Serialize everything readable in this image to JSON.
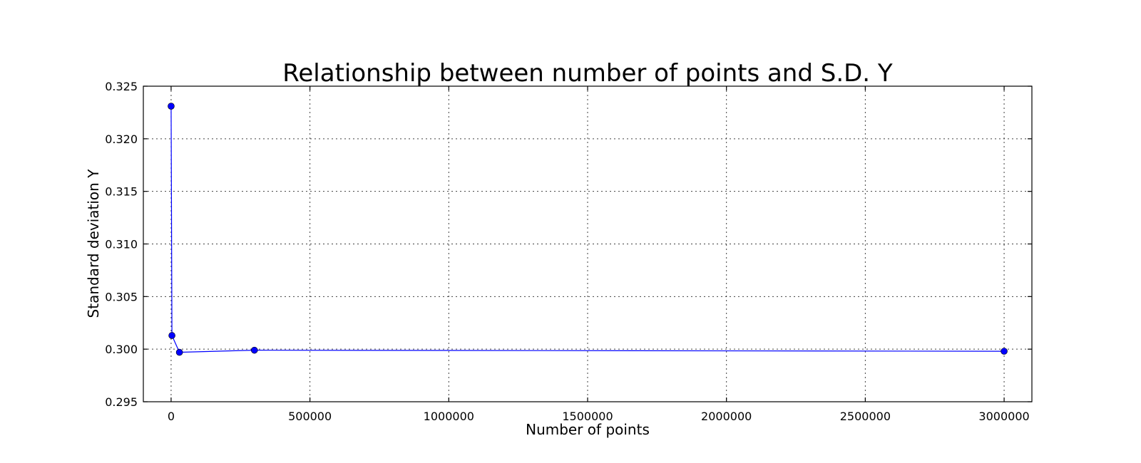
{
  "chart_data": {
    "type": "line",
    "title": "Relationship between number of points and S.D. Y",
    "xlabel": "Number of points",
    "ylabel": "Standard deviation Y",
    "xlim": [
      -100000,
      3100000
    ],
    "ylim": [
      0.295,
      0.325
    ],
    "xticks": [
      0,
      500000,
      1000000,
      1500000,
      2000000,
      2500000,
      3000000
    ],
    "xtick_labels": [
      "0",
      "500000",
      "1000000",
      "1500000",
      "2000000",
      "2500000",
      "3000000"
    ],
    "yticks": [
      0.295,
      0.3,
      0.305,
      0.31,
      0.315,
      0.32,
      0.325
    ],
    "ytick_labels": [
      "0.295",
      "0.300",
      "0.305",
      "0.310",
      "0.315",
      "0.320",
      "0.325"
    ],
    "grid": true,
    "series": [
      {
        "color": "#0000ff",
        "marker": "circle",
        "x": [
          30,
          3000,
          30000,
          300000,
          3000000
        ],
        "y": [
          0.3231,
          0.3013,
          0.2997,
          0.2999,
          0.2998
        ]
      }
    ]
  }
}
